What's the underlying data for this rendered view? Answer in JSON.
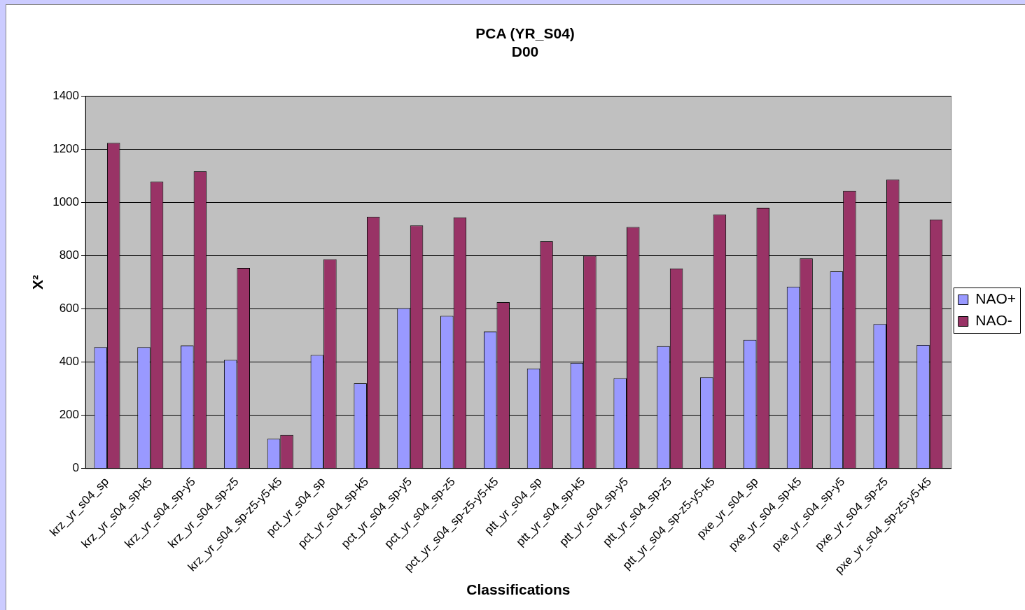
{
  "chart_data": {
    "type": "bar",
    "title": [
      "PCA (YR_S04)",
      "D00"
    ],
    "xlabel": "Classifications",
    "ylabel": "X²",
    "categories": [
      "krz_yr_s04_sp",
      "krz_yr_s04_sp-k5",
      "krz_yr_s04_sp-y5",
      "krz_yr_s04_sp-z5",
      "krz_yr_s04_sp-z5-y5-k5",
      "pct_yr_s04_sp",
      "pct_yr_s04_sp-k5",
      "pct_yr_s04_sp-y5",
      "pct_yr_s04_sp-z5",
      "pct_yr_s04_sp-z5-y5-k5",
      "ptt_yr_s04_sp",
      "ptt_yr_s04_sp-k5",
      "ptt_yr_s04_sp-y5",
      "ptt_yr_s04_sp-z5",
      "ptt_yr_s04_sp-z5-y5-k5",
      "pxe_yr_s04_sp",
      "pxe_yr_s04_sp-k5",
      "pxe_yr_s04_sp-y5",
      "pxe_yr_s04_sp-z5",
      "pxe_yr_s04_sp-z5-y5-k5"
    ],
    "series": [
      {
        "name": "NAO+",
        "color": "#9999ff",
        "values": [
          456,
          456,
          462,
          408,
          112,
          427,
          320,
          603,
          574,
          515,
          376,
          397,
          339,
          460,
          343,
          484,
          684,
          741,
          543,
          465
        ]
      },
      {
        "name": "NAO-",
        "color": "#993366",
        "values": [
          1224,
          1079,
          1117,
          754,
          126,
          787,
          947,
          914,
          944,
          625,
          854,
          800,
          908,
          752,
          955,
          980,
          790,
          1044,
          1087,
          936
        ]
      }
    ],
    "ylim": [
      0,
      1400
    ],
    "yticks": [
      0,
      200,
      400,
      600,
      800,
      1000,
      1200,
      1400
    ],
    "grid": "y",
    "legend": "right"
  }
}
